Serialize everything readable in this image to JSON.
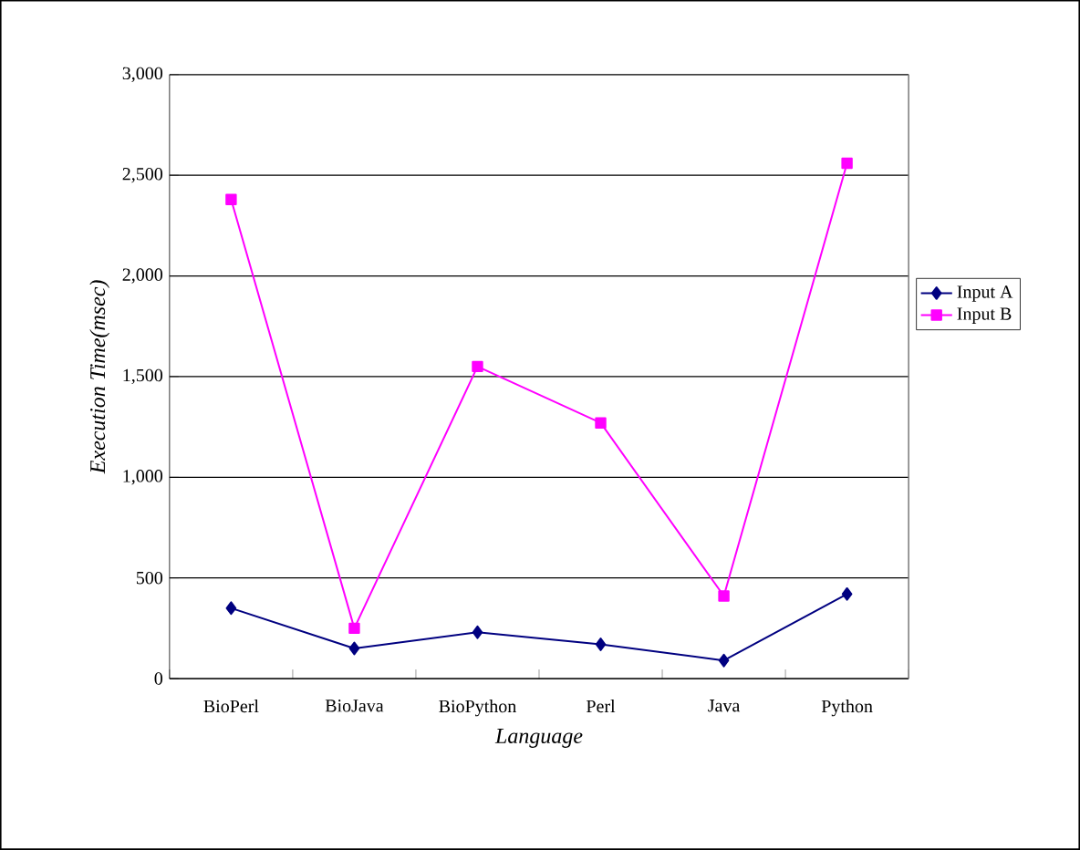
{
  "chart_data": {
    "type": "line",
    "xlabel": "Language",
    "ylabel": "Execution Time(msec)",
    "categories": [
      "BioPerl",
      "BioJava",
      "BioPython",
      "Perl",
      "Java",
      "Python"
    ],
    "series": [
      {
        "name": "Input A",
        "color": "#000080",
        "marker": "diamond",
        "values": [
          350,
          150,
          230,
          170,
          90,
          420
        ]
      },
      {
        "name": "Input B",
        "color": "#ff00ff",
        "marker": "square",
        "values": [
          2380,
          250,
          1550,
          1270,
          410,
          2560
        ]
      }
    ],
    "ylim": [
      0,
      3000
    ],
    "yticks": [
      {
        "value": 0,
        "label": "0"
      },
      {
        "value": 500,
        "label": "500"
      },
      {
        "value": 1000,
        "label": "1,000"
      },
      {
        "value": 1500,
        "label": "1,500"
      },
      {
        "value": 2000,
        "label": "2,000"
      },
      {
        "value": 2500,
        "label": "2,500"
      },
      {
        "value": 3000,
        "label": "3,000"
      }
    ],
    "grid": "y",
    "legend": "right",
    "line_style": "solid"
  }
}
